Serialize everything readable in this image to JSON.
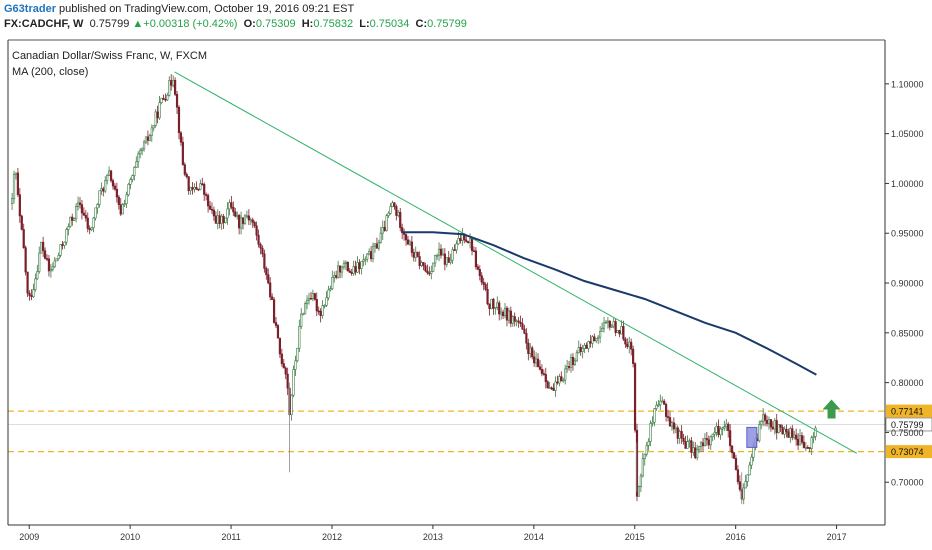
{
  "header": {
    "author": "G63trader",
    "published_text": " published on TradingView.com, October 19, 2016 09:21 EST",
    "symbol": "FX:CADCHF, W",
    "last": "0.75799",
    "change": "+0.00318 (+0.42%)",
    "o_label": "O:",
    "o_value": "0.75309",
    "h_label": "H:",
    "h_value": "0.75832",
    "l_label": "L:",
    "l_value": "0.75034",
    "c_label": "C:",
    "c_value": "0.75799"
  },
  "chart_data": {
    "type": "candlestick",
    "title": "Canadian Dollar/Swiss Franc, W, FXCM",
    "indicator": "MA (200, close)",
    "xlabel": "",
    "ylabel": "",
    "x_ticks": [
      "2009",
      "2010",
      "2011",
      "2012",
      "2013",
      "2014",
      "2015",
      "2016",
      "2017"
    ],
    "x_tick_values": [
      2009,
      2010,
      2011,
      2012,
      2013,
      2014,
      2015,
      2016,
      2017
    ],
    "xlim": [
      2008.75,
      2017.45
    ],
    "y_ticks": [
      "1.10000",
      "1.05000",
      "1.00000",
      "0.95000",
      "0.90000",
      "0.85000",
      "0.80000",
      "0.75000",
      "0.70000"
    ],
    "y_tick_values": [
      1.1,
      1.05,
      1.0,
      0.95,
      0.9,
      0.85,
      0.8,
      0.75,
      0.7
    ],
    "ylim": [
      0.648,
      1.137
    ],
    "price_path": [
      [
        2008.83,
        0.98
      ],
      [
        2008.86,
        1.02
      ],
      [
        2008.9,
        0.97
      ],
      [
        2008.95,
        0.93
      ],
      [
        2008.99,
        0.88
      ],
      [
        2009.05,
        0.9
      ],
      [
        2009.12,
        0.94
      ],
      [
        2009.2,
        0.91
      ],
      [
        2009.3,
        0.93
      ],
      [
        2009.4,
        0.96
      ],
      [
        2009.5,
        0.98
      ],
      [
        2009.6,
        0.95
      ],
      [
        2009.7,
        0.99
      ],
      [
        2009.8,
        1.01
      ],
      [
        2009.9,
        0.97
      ],
      [
        2010.0,
        1.0
      ],
      [
        2010.1,
        1.03
      ],
      [
        2010.2,
        1.05
      ],
      [
        2010.3,
        1.08
      ],
      [
        2010.4,
        1.1
      ],
      [
        2010.43,
        1.11
      ],
      [
        2010.48,
        1.06
      ],
      [
        2010.52,
        1.02
      ],
      [
        2010.6,
        0.99
      ],
      [
        2010.7,
        1.0
      ],
      [
        2010.8,
        0.97
      ],
      [
        2010.9,
        0.96
      ],
      [
        2011.0,
        0.98
      ],
      [
        2011.08,
        0.96
      ],
      [
        2011.15,
        0.97
      ],
      [
        2011.22,
        0.96
      ],
      [
        2011.3,
        0.93
      ],
      [
        2011.35,
        0.91
      ],
      [
        2011.42,
        0.87
      ],
      [
        2011.48,
        0.83
      ],
      [
        2011.55,
        0.81
      ],
      [
        2011.58,
        0.77
      ],
      [
        2011.62,
        0.81
      ],
      [
        2011.7,
        0.87
      ],
      [
        2011.78,
        0.89
      ],
      [
        2011.88,
        0.87
      ],
      [
        2012.0,
        0.9
      ],
      [
        2012.1,
        0.92
      ],
      [
        2012.2,
        0.91
      ],
      [
        2012.3,
        0.92
      ],
      [
        2012.4,
        0.93
      ],
      [
        2012.5,
        0.95
      ],
      [
        2012.6,
        0.98
      ],
      [
        2012.68,
        0.96
      ],
      [
        2012.8,
        0.93
      ],
      [
        2012.95,
        0.91
      ],
      [
        2013.05,
        0.93
      ],
      [
        2013.15,
        0.92
      ],
      [
        2013.3,
        0.95
      ],
      [
        2013.38,
        0.94
      ],
      [
        2013.45,
        0.91
      ],
      [
        2013.55,
        0.88
      ],
      [
        2013.7,
        0.87
      ],
      [
        2013.85,
        0.86
      ],
      [
        2014.0,
        0.82
      ],
      [
        2014.1,
        0.81
      ],
      [
        2014.18,
        0.79
      ],
      [
        2014.25,
        0.8
      ],
      [
        2014.35,
        0.82
      ],
      [
        2014.45,
        0.83
      ],
      [
        2014.55,
        0.84
      ],
      [
        2014.65,
        0.85
      ],
      [
        2014.75,
        0.86
      ],
      [
        2014.88,
        0.85
      ],
      [
        2014.98,
        0.83
      ],
      [
        2015.02,
        0.69
      ],
      [
        2015.06,
        0.71
      ],
      [
        2015.12,
        0.74
      ],
      [
        2015.2,
        0.77
      ],
      [
        2015.28,
        0.78
      ],
      [
        2015.35,
        0.76
      ],
      [
        2015.42,
        0.75
      ],
      [
        2015.5,
        0.74
      ],
      [
        2015.6,
        0.73
      ],
      [
        2015.7,
        0.74
      ],
      [
        2015.8,
        0.75
      ],
      [
        2015.9,
        0.76
      ],
      [
        2015.96,
        0.73
      ],
      [
        2016.02,
        0.7
      ],
      [
        2016.06,
        0.68
      ],
      [
        2016.12,
        0.71
      ],
      [
        2016.2,
        0.74
      ],
      [
        2016.27,
        0.77
      ],
      [
        2016.35,
        0.76
      ],
      [
        2016.45,
        0.75
      ],
      [
        2016.55,
        0.75
      ],
      [
        2016.65,
        0.74
      ],
      [
        2016.72,
        0.73
      ],
      [
        2016.8,
        0.758
      ]
    ],
    "series": [
      {
        "name": "MA (200, close)",
        "color": "#1b3a6b",
        "points": [
          [
            2012.7,
            0.951
          ],
          [
            2013.0,
            0.951
          ],
          [
            2013.3,
            0.949
          ],
          [
            2013.6,
            0.938
          ],
          [
            2013.9,
            0.925
          ],
          [
            2014.2,
            0.914
          ],
          [
            2014.5,
            0.902
          ],
          [
            2014.8,
            0.893
          ],
          [
            2015.1,
            0.884
          ],
          [
            2015.4,
            0.872
          ],
          [
            2015.7,
            0.86
          ],
          [
            2016.0,
            0.85
          ],
          [
            2016.3,
            0.835
          ],
          [
            2016.6,
            0.819
          ],
          [
            2016.8,
            0.808
          ]
        ]
      }
    ],
    "trendline": {
      "color": "#2fb36a",
      "from": [
        2010.44,
        1.112
      ],
      "to": [
        2017.2,
        0.729
      ]
    },
    "levels": [
      {
        "value": 0.77141,
        "label": "0.77141",
        "color": "#f0b429"
      },
      {
        "value": 0.73074,
        "label": "0.73074",
        "color": "#f0b429"
      }
    ],
    "last_price": {
      "value": 0.75799,
      "label": "0.75799"
    },
    "annotations": [
      {
        "type": "up-arrow",
        "x": 2016.95,
        "y": 0.767,
        "color": "#3c9a4a"
      },
      {
        "type": "highlight-box",
        "x": 2016.16,
        "y": 0.745,
        "color": "#8c8fe0"
      }
    ],
    "colors": {
      "up": "#3c7a43",
      "down": "#7a1f2a",
      "axis": "#333333"
    },
    "grid": false,
    "legend": "none"
  }
}
